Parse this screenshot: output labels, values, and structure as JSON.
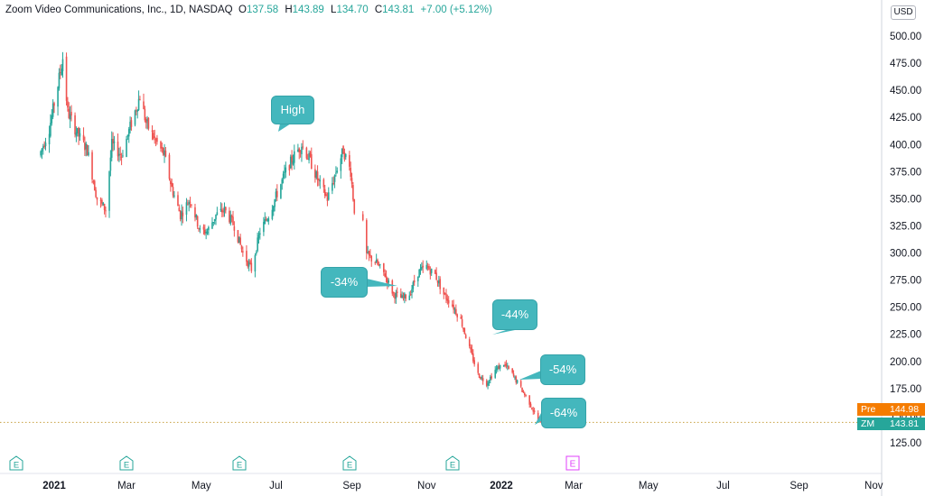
{
  "legend": {
    "title": "Zoom Video Communications, Inc., 1D, NASDAQ",
    "open_label": "O",
    "open": "137.58",
    "high_label": "H",
    "high": "143.89",
    "low_label": "L",
    "low": "134.70",
    "close_label": "C",
    "close": "143.81",
    "change": "+7.00 (+5.12%)"
  },
  "currency": "USD",
  "price_labels": {
    "pre_label": "Pre",
    "pre_value": "144.98",
    "symbol_label": "ZM",
    "symbol_value": "143.81"
  },
  "annotations": {
    "high": "High",
    "d34": "-34%",
    "d44": "-44%",
    "d54": "-54%",
    "d64": "-64%"
  },
  "earnings_badge": "E",
  "colors": {
    "up": "#26a69a",
    "down": "#ef5350",
    "callout": "#44b7bd",
    "pre": "#f57c00",
    "future_earnings": "#e040fb"
  },
  "chart_data": {
    "type": "candlestick",
    "title": "Zoom Video Communications, Inc., 1D, NASDAQ",
    "ylim": [
      100,
      525
    ],
    "y_ticks": [
      125,
      150,
      175,
      200,
      225,
      250,
      275,
      300,
      325,
      350,
      375,
      400,
      425,
      450,
      475,
      500
    ],
    "y_tick_labels": [
      "125.00",
      "150.00",
      "175.00",
      "200.00",
      "225.00",
      "250.00",
      "275.00",
      "300.00",
      "325.00",
      "350.00",
      "375.00",
      "400.00",
      "425.00",
      "450.00",
      "475.00",
      "500.00"
    ],
    "x_labels": [
      "2021",
      "Mar",
      "May",
      "Jul",
      "Sep",
      "Nov",
      "2022",
      "Mar",
      "May",
      "Jul",
      "Sep",
      "Nov"
    ],
    "bold_x_labels": [
      "2021",
      "2022"
    ],
    "current_price": 143.81,
    "premarket_price": 144.98,
    "path": [
      [
        "2020-12-20",
        390
      ],
      [
        "2020-12-28",
        415
      ],
      [
        "2021-01-04",
        455
      ],
      [
        "2021-01-08",
        480
      ],
      [
        "2021-01-12",
        430
      ],
      [
        "2021-01-20",
        410
      ],
      [
        "2021-01-28",
        395
      ],
      [
        "2021-02-05",
        350
      ],
      [
        "2021-02-12",
        340
      ],
      [
        "2021-02-17",
        400
      ],
      [
        "2021-02-25",
        390
      ],
      [
        "2021-03-05",
        420
      ],
      [
        "2021-03-12",
        445
      ],
      [
        "2021-03-17",
        420
      ],
      [
        "2021-03-24",
        405
      ],
      [
        "2021-04-01",
        390
      ],
      [
        "2021-04-07",
        360
      ],
      [
        "2021-04-14",
        335
      ],
      [
        "2021-04-22",
        350
      ],
      [
        "2021-04-30",
        320
      ],
      [
        "2021-05-06",
        320
      ],
      [
        "2021-05-13",
        335
      ],
      [
        "2021-05-20",
        340
      ],
      [
        "2021-05-28",
        325
      ],
      [
        "2021-06-04",
        300
      ],
      [
        "2021-06-11",
        285
      ],
      [
        "2021-06-18",
        320
      ],
      [
        "2021-06-25",
        335
      ],
      [
        "2021-07-02",
        355
      ],
      [
        "2021-07-09",
        375
      ],
      [
        "2021-07-16",
        390
      ],
      [
        "2021-07-22",
        400
      ],
      [
        "2021-07-29",
        385
      ],
      [
        "2021-08-05",
        365
      ],
      [
        "2021-08-12",
        350
      ],
      [
        "2021-08-19",
        375
      ],
      [
        "2021-08-25",
        395
      ],
      [
        "2021-08-31",
        375
      ],
      [
        "2021-09-03",
        340
      ],
      [
        "2021-09-08",
        345
      ],
      [
        "2021-09-13",
        298
      ],
      [
        "2021-09-20",
        292
      ],
      [
        "2021-09-28",
        280
      ],
      [
        "2021-10-05",
        262
      ],
      [
        "2021-10-12",
        258
      ],
      [
        "2021-10-18",
        262
      ],
      [
        "2021-10-25",
        282
      ],
      [
        "2021-11-01",
        287
      ],
      [
        "2021-11-08",
        280
      ],
      [
        "2021-11-15",
        262
      ],
      [
        "2021-11-22",
        252
      ],
      [
        "2021-11-29",
        238
      ],
      [
        "2021-12-06",
        212
      ],
      [
        "2021-12-13",
        188
      ],
      [
        "2021-12-20",
        180
      ],
      [
        "2021-12-27",
        192
      ],
      [
        "2022-01-03",
        198
      ],
      [
        "2022-01-10",
        188
      ],
      [
        "2022-01-17",
        175
      ],
      [
        "2022-01-24",
        162
      ],
      [
        "2022-01-31",
        145
      ],
      [
        "2022-02-04",
        143.81
      ]
    ],
    "annotations": [
      {
        "text": "High",
        "date": "2021-07-26",
        "price": 404
      },
      {
        "text": "-34%",
        "date": "2021-10-20",
        "price": 270
      },
      {
        "text": "-44%",
        "date": "2021-12-28",
        "price": 225
      },
      {
        "text": "-54%",
        "date": "2022-01-24",
        "price": 185
      },
      {
        "text": "-64%",
        "date": "2022-02-04",
        "price": 145
      }
    ],
    "earnings_events": [
      "2020-12-01",
      "2021-03-01",
      "2021-06-01",
      "2021-08-30",
      "2021-11-22"
    ],
    "upcoming_earnings": [
      "2022-02-28"
    ]
  }
}
